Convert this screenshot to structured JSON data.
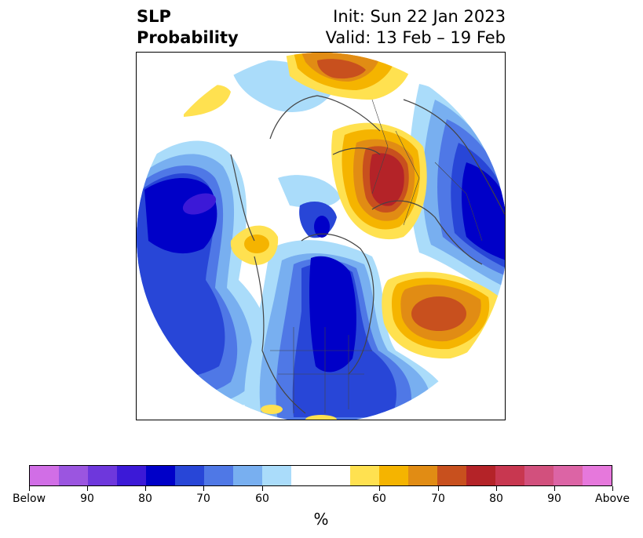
{
  "title": {
    "line1": "SLP",
    "line2": "Probability",
    "init": "Init: Sun 22 Jan 2023",
    "valid": "Valid: 13 Feb – 19 Feb"
  },
  "map": {
    "projection": "north-polar-stereographic",
    "low_pressure_color": "#0000c8",
    "high_pressure_color": "#c8501e"
  },
  "colorbar": {
    "unit": "%",
    "colors": [
      "#d16ee6",
      "#9b55e0",
      "#6e37dc",
      "#3c19d7",
      "#0000c8",
      "#2846d7",
      "#4f78e6",
      "#78aff0",
      "#aadcfa",
      "#ffffff",
      "#ffe150",
      "#f5b400",
      "#e18c14",
      "#c8501e",
      "#b42328",
      "#c83750",
      "#d2507d",
      "#dc64a5",
      "#e678dc"
    ],
    "ticks": [
      "Below",
      "90",
      "80",
      "70",
      "60",
      "60",
      "70",
      "80",
      "90",
      "Above"
    ]
  }
}
